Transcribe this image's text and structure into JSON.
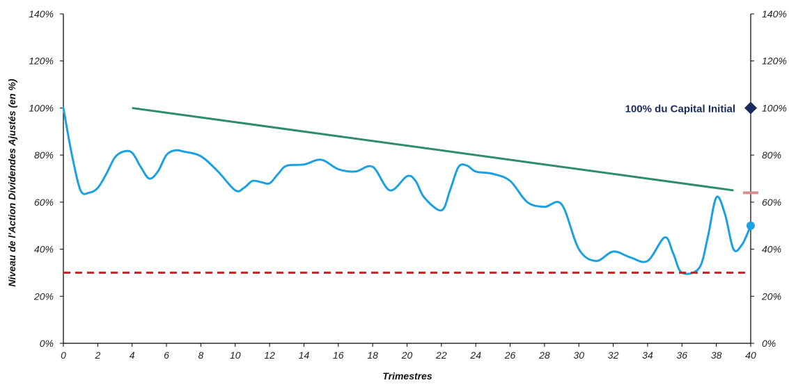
{
  "chart_data": {
    "type": "line",
    "xlabel": "Trimestres",
    "ylabel": "Niveau de l'Action Dividendes Ajustés (en %)",
    "xlim": [
      0,
      40
    ],
    "ylim": [
      0,
      140
    ],
    "x_ticks": [
      "0",
      "2",
      "4",
      "6",
      "8",
      "10",
      "12",
      "14",
      "16",
      "18",
      "20",
      "22",
      "24",
      "26",
      "28",
      "30",
      "32",
      "34",
      "36",
      "38",
      "40"
    ],
    "y_ticks_left": [
      "0%",
      "20%",
      "40%",
      "60%",
      "80%",
      "100%",
      "120%",
      "140%"
    ],
    "y_ticks_right": [
      "0%",
      "20%",
      "40%",
      "60%",
      "80%",
      "100%",
      "120%",
      "140%"
    ],
    "grid": false,
    "series": [
      {
        "role": "stock-level",
        "color": "#1ba1e2",
        "points": [
          [
            0,
            100
          ],
          [
            0.5,
            80
          ],
          [
            1,
            65
          ],
          [
            1.5,
            64
          ],
          [
            2,
            66
          ],
          [
            2.5,
            72
          ],
          [
            3,
            79
          ],
          [
            3.5,
            81.5
          ],
          [
            4,
            81
          ],
          [
            4.5,
            75
          ],
          [
            5,
            70
          ],
          [
            5.5,
            73
          ],
          [
            6,
            80
          ],
          [
            6.5,
            82
          ],
          [
            7,
            81.5
          ],
          [
            8,
            79.5
          ],
          [
            9,
            73
          ],
          [
            10,
            65
          ],
          [
            10.5,
            66
          ],
          [
            11,
            69
          ],
          [
            11.5,
            68.5
          ],
          [
            12,
            68
          ],
          [
            12.5,
            72
          ],
          [
            13,
            75.5
          ],
          [
            14,
            76
          ],
          [
            15,
            78
          ],
          [
            16,
            74
          ],
          [
            17,
            73
          ],
          [
            18,
            75
          ],
          [
            19,
            65
          ],
          [
            20,
            71
          ],
          [
            20.5,
            69
          ],
          [
            21,
            62
          ],
          [
            22,
            56.5
          ],
          [
            22.5,
            65
          ],
          [
            23,
            75
          ],
          [
            23.5,
            75.5
          ],
          [
            24,
            73
          ],
          [
            25,
            72
          ],
          [
            26,
            69
          ],
          [
            27,
            60
          ],
          [
            28,
            58
          ],
          [
            29,
            59
          ],
          [
            30,
            40
          ],
          [
            31,
            35
          ],
          [
            32,
            39
          ],
          [
            33,
            36.5
          ],
          [
            34,
            35
          ],
          [
            35,
            45
          ],
          [
            35.5,
            38
          ],
          [
            36,
            30
          ],
          [
            37,
            32
          ],
          [
            37.5,
            45
          ],
          [
            38,
            62
          ],
          [
            38.5,
            55
          ],
          [
            39,
            40
          ],
          [
            39.5,
            42
          ],
          [
            40,
            50
          ]
        ]
      },
      {
        "role": "decreasing-barrier",
        "color": "#2e8b6e",
        "points": [
          [
            4,
            100
          ],
          [
            39,
            65
          ]
        ]
      },
      {
        "role": "protection-barrier",
        "color": "#cc1f1f",
        "style": "dashed",
        "points": [
          [
            0,
            30
          ],
          [
            40,
            30
          ]
        ]
      }
    ],
    "markers": [
      {
        "name": "capital-marker",
        "shape": "diamond",
        "x": 40,
        "y": 100,
        "color": "#1b2a5c"
      },
      {
        "name": "final-level-marker",
        "shape": "circle",
        "x": 40,
        "y": 50,
        "color": "#1ba1e2"
      },
      {
        "name": "threshold-tick-marker",
        "shape": "dash",
        "x": 40,
        "y": 64,
        "color": "#d98c8c"
      }
    ],
    "annotations": [
      {
        "text": "100% du Capital Initial",
        "x": 40,
        "y": 100,
        "color": "#1b2a5c"
      }
    ]
  }
}
